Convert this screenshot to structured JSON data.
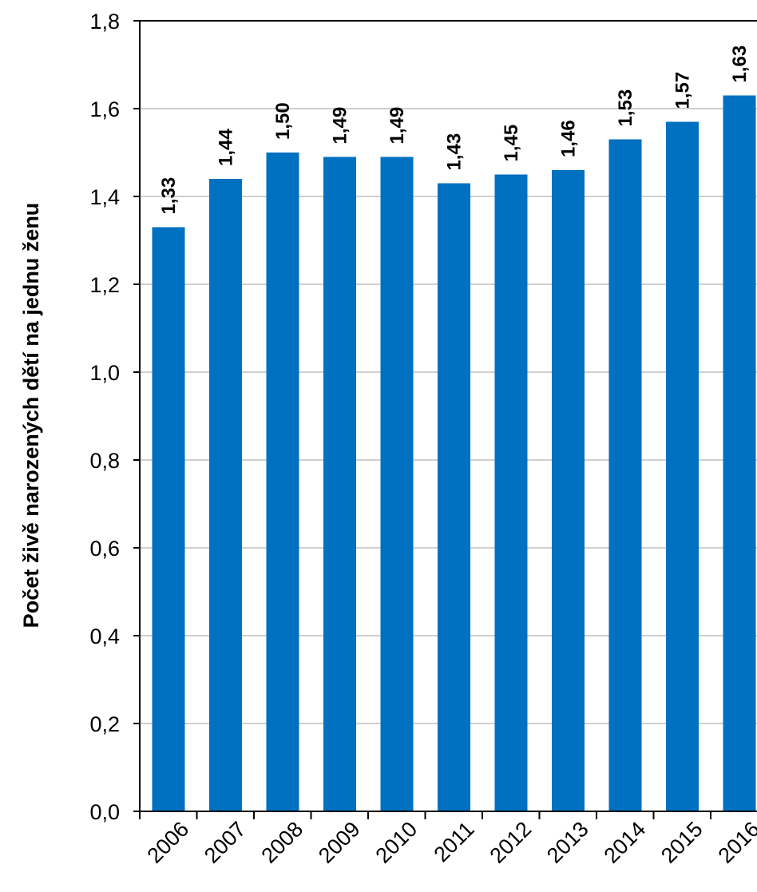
{
  "chart_data": {
    "type": "bar",
    "categories": [
      "2006",
      "2007",
      "2008",
      "2009",
      "2010",
      "2011",
      "2012",
      "2013",
      "2014",
      "2015",
      "2016"
    ],
    "values": [
      1.33,
      1.44,
      1.5,
      1.49,
      1.49,
      1.43,
      1.45,
      1.46,
      1.53,
      1.57,
      1.63
    ],
    "data_labels": [
      "1,33",
      "1,44",
      "1,50",
      "1,49",
      "1,49",
      "1,43",
      "1,45",
      "1,46",
      "1,53",
      "1,57",
      "1,63"
    ],
    "ylabel": "Počet živě narozených dětí na jednu ženu",
    "xlabel": "",
    "ylim": [
      0,
      1.8
    ],
    "yticks": [
      0,
      0.2,
      0.4,
      0.6,
      0.8,
      1.0,
      1.2,
      1.4,
      1.6,
      1.8
    ],
    "ytick_labels": [
      "0,0",
      "0,2",
      "0,4",
      "0,6",
      "0,8",
      "1,0",
      "1,2",
      "1,4",
      "1,6",
      "1,8"
    ],
    "grid": true,
    "legend": false,
    "bar_color": "#0070C0",
    "grid_color": "#BFBFBF"
  }
}
